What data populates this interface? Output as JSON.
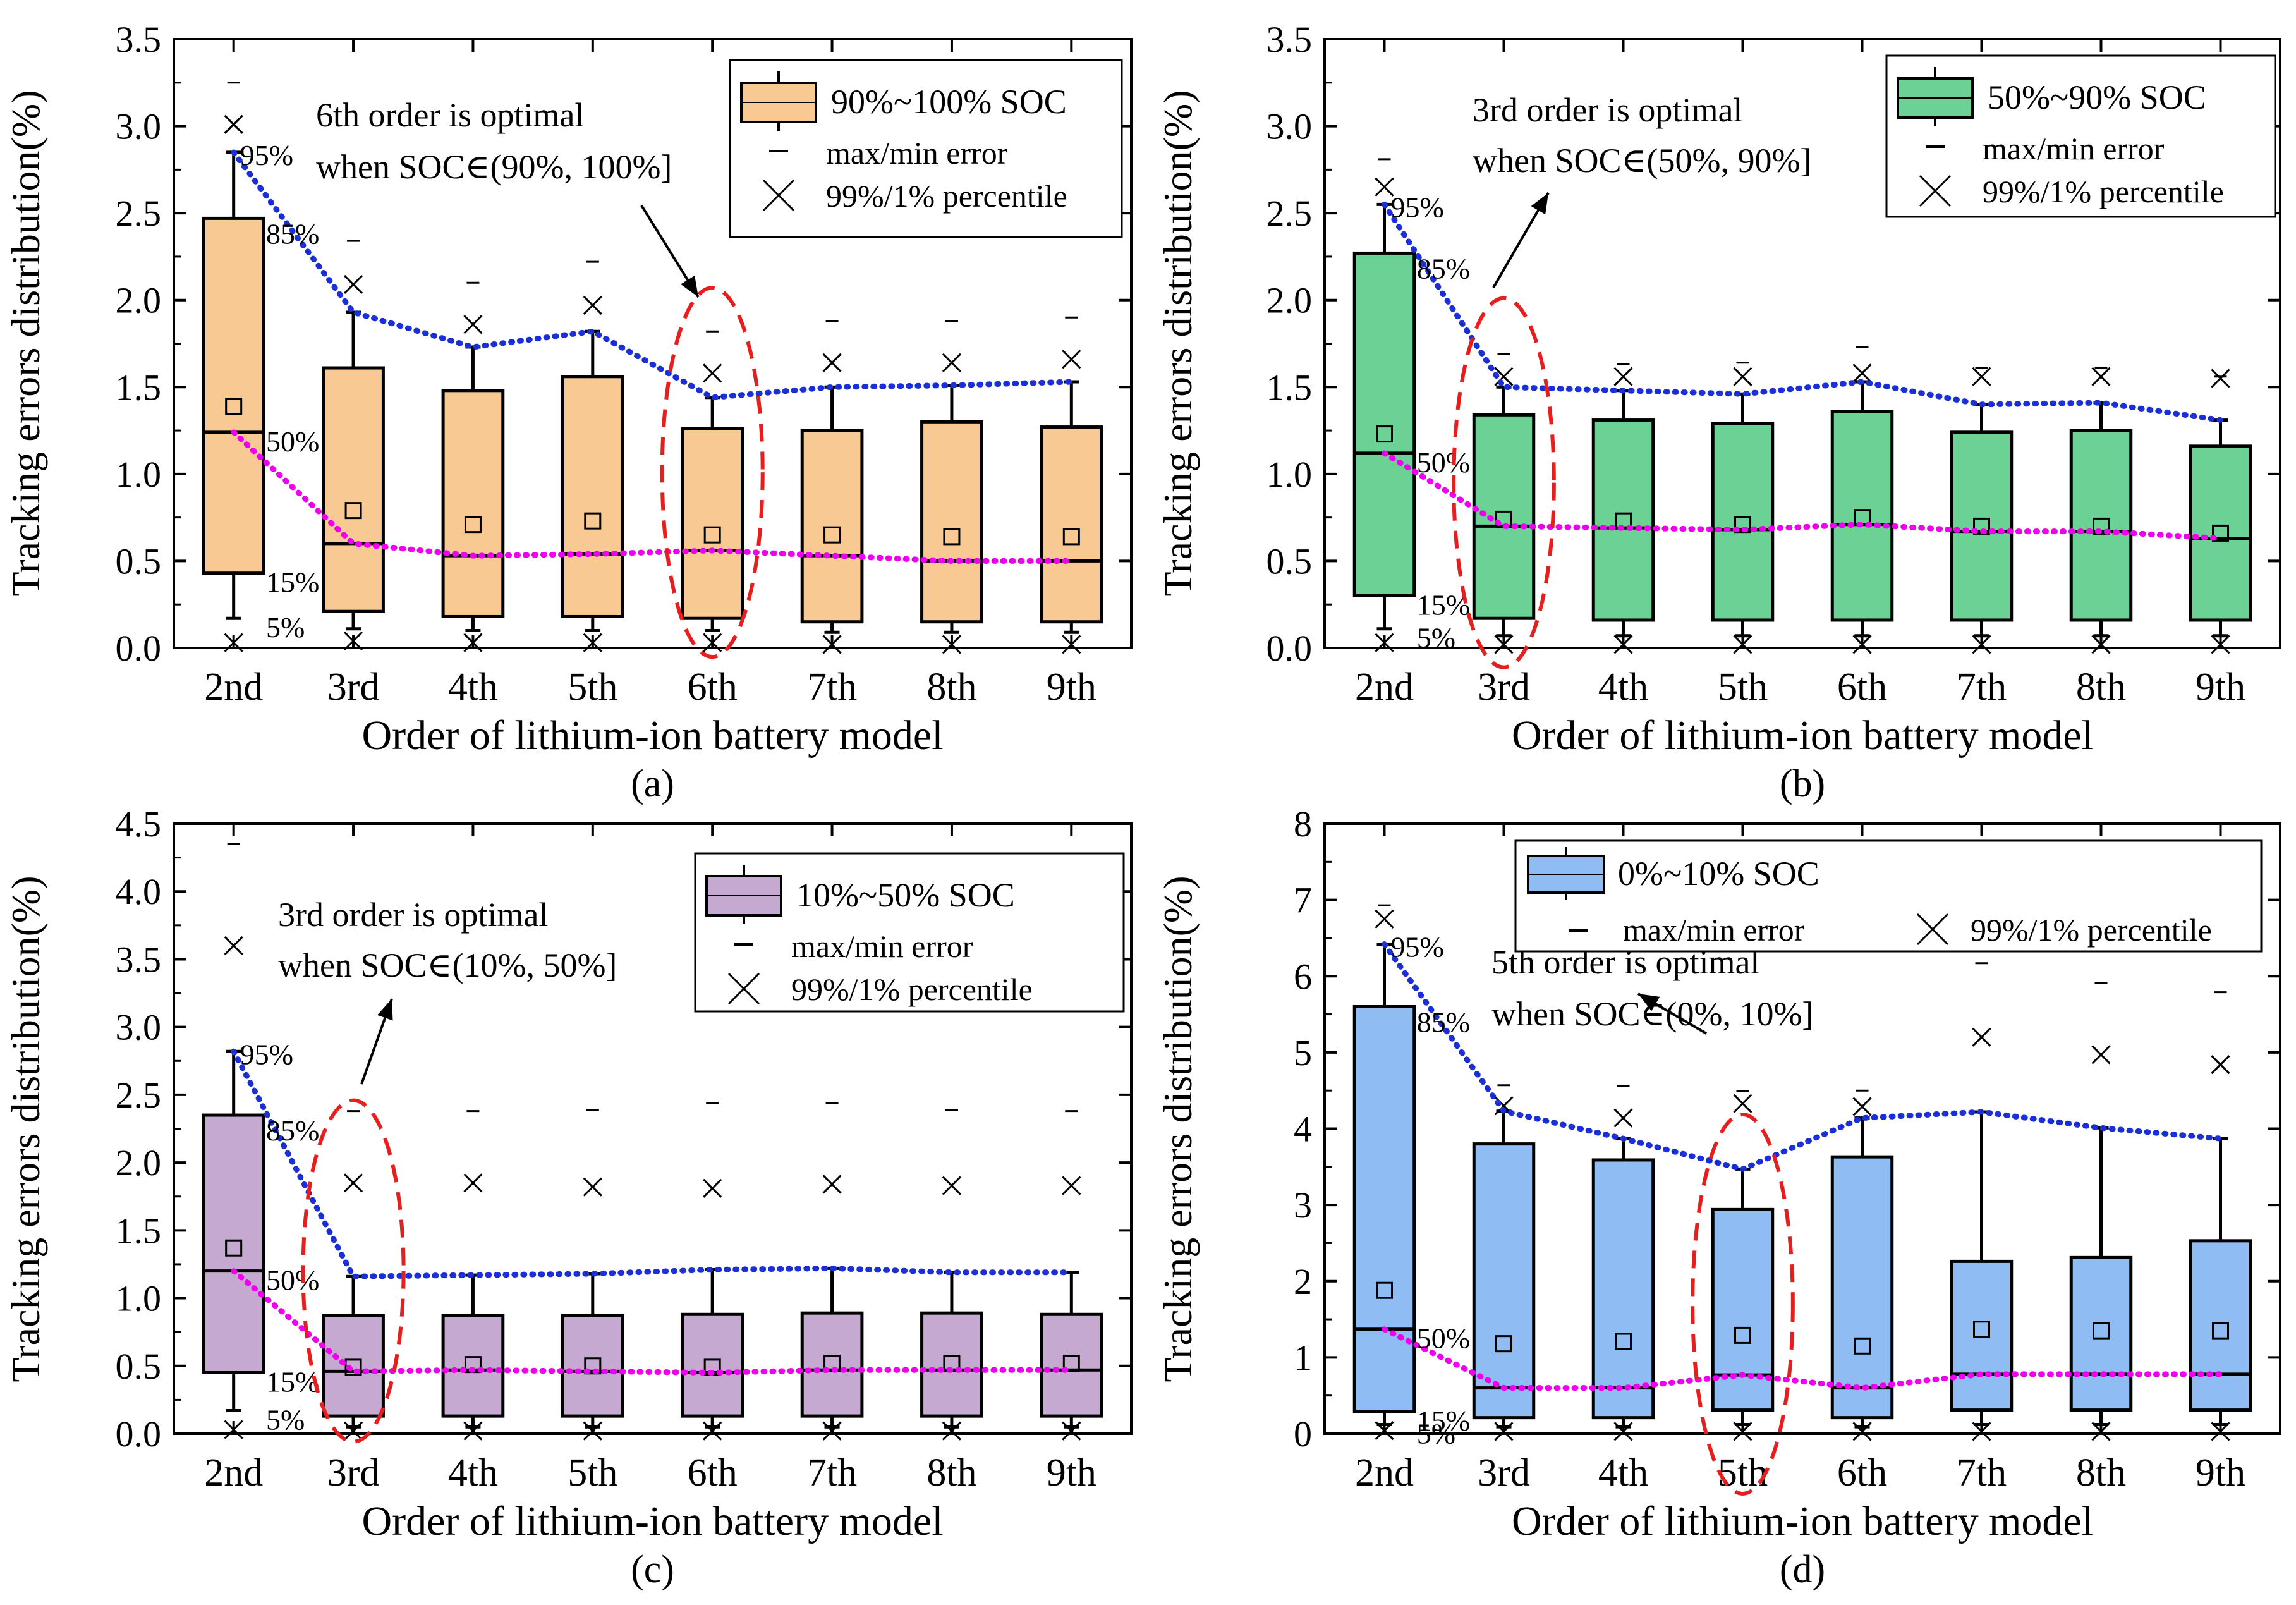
{
  "chart_data": [
    {
      "type": "box",
      "panel_label": "(a)",
      "xlabel": "Order of lithium-ion battery model",
      "ylabel": "Tracking errors distribution(%)",
      "categories": [
        "2nd",
        "3rd",
        "4th",
        "5th",
        "6th",
        "7th",
        "8th",
        "9th"
      ],
      "ylim": [
        0,
        3.5
      ],
      "yticks": [
        0.0,
        0.5,
        1.0,
        1.5,
        2.0,
        2.5,
        3.0,
        3.5
      ],
      "ytick_labels": [
        "0.0",
        "0.5",
        "1.0",
        "1.5",
        "2.0",
        "2.5",
        "3.0",
        "3.5"
      ],
      "box_color": "#f9c994",
      "highlight_index": 4,
      "legend": {
        "box": "90%~100% SOC",
        "minmax": "max/min error",
        "percentile": "99%/1% percentile"
      },
      "annotation": {
        "line1": "6th order is optimal",
        "line2": "when SOC∈(90%, 100%]"
      },
      "percent_labels": {
        "p95": "95%",
        "p85": "85%",
        "p50": "50%",
        "p15": "15%",
        "p5": "5%"
      },
      "p95": [
        2.85,
        1.93,
        1.73,
        1.82,
        1.44,
        1.5,
        1.51,
        1.53
      ],
      "p85": [
        2.47,
        1.61,
        1.48,
        1.56,
        1.26,
        1.25,
        1.3,
        1.27
      ],
      "p50": [
        1.24,
        0.6,
        0.53,
        0.54,
        0.56,
        0.53,
        0.5,
        0.5
      ],
      "p15": [
        0.43,
        0.21,
        0.18,
        0.18,
        0.17,
        0.15,
        0.15,
        0.15
      ],
      "p5": [
        0.17,
        0.11,
        0.1,
        0.1,
        0.1,
        0.09,
        0.09,
        0.09
      ],
      "mean": [
        1.39,
        0.79,
        0.71,
        0.73,
        0.65,
        0.65,
        0.64,
        0.64
      ],
      "p99": [
        3.01,
        2.09,
        1.86,
        1.97,
        1.58,
        1.64,
        1.64,
        1.66
      ],
      "p1": [
        0.03,
        0.04,
        0.03,
        0.03,
        0.03,
        0.02,
        0.02,
        0.02
      ],
      "max": [
        3.25,
        2.34,
        2.1,
        2.22,
        1.82,
        1.88,
        1.88,
        1.9
      ],
      "min": [
        0.0,
        0.0,
        0.0,
        0.0,
        0.0,
        0.0,
        0.0,
        0.0
      ]
    },
    {
      "type": "box",
      "panel_label": "(b)",
      "xlabel": "Order of lithium-ion battery model",
      "ylabel": "Tracking errors distribution(%)",
      "categories": [
        "2nd",
        "3rd",
        "4th",
        "5th",
        "6th",
        "7th",
        "8th",
        "9th"
      ],
      "ylim": [
        0,
        3.5
      ],
      "yticks": [
        0.0,
        0.5,
        1.0,
        1.5,
        2.0,
        2.5,
        3.0,
        3.5
      ],
      "ytick_labels": [
        "0.0",
        "0.5",
        "1.0",
        "1.5",
        "2.0",
        "2.5",
        "3.0",
        "3.5"
      ],
      "box_color": "#6cd195",
      "highlight_index": 1,
      "legend": {
        "box": "50%~90% SOC",
        "minmax": "max/min error",
        "percentile": "99%/1% percentile"
      },
      "annotation": {
        "line1": "3rd order is optimal",
        "line2": "when SOC∈(50%, 90%]"
      },
      "percent_labels": {
        "p95": "95%",
        "p85": "85%",
        "p50": "50%",
        "p15": "15%",
        "p5": "5%"
      },
      "p95": [
        2.55,
        1.5,
        1.48,
        1.46,
        1.53,
        1.4,
        1.41,
        1.31
      ],
      "p85": [
        2.27,
        1.34,
        1.31,
        1.29,
        1.36,
        1.24,
        1.25,
        1.16
      ],
      "p50": [
        1.12,
        0.7,
        0.69,
        0.68,
        0.71,
        0.67,
        0.67,
        0.63
      ],
      "p15": [
        0.3,
        0.17,
        0.16,
        0.16,
        0.16,
        0.16,
        0.16,
        0.16
      ],
      "p5": [
        0.11,
        0.07,
        0.07,
        0.07,
        0.07,
        0.07,
        0.07,
        0.07
      ],
      "mean": [
        1.23,
        0.74,
        0.73,
        0.71,
        0.75,
        0.7,
        0.7,
        0.66
      ],
      "p99": [
        2.65,
        1.56,
        1.56,
        1.56,
        1.58,
        1.56,
        1.56,
        1.55
      ],
      "p1": [
        0.03,
        0.02,
        0.02,
        0.02,
        0.02,
        0.02,
        0.02,
        0.02
      ],
      "max": [
        2.81,
        1.69,
        1.63,
        1.64,
        1.73,
        1.61,
        1.61,
        1.56
      ],
      "min": [
        0.0,
        0.0,
        0.0,
        0.0,
        0.0,
        0.0,
        0.0,
        0.0
      ]
    },
    {
      "type": "box",
      "panel_label": "(c)",
      "xlabel": "Order of lithium-ion battery model",
      "ylabel": "Tracking errors distribution(%)",
      "categories": [
        "2nd",
        "3rd",
        "4th",
        "5th",
        "6th",
        "7th",
        "8th",
        "9th"
      ],
      "ylim": [
        0,
        4.5
      ],
      "yticks": [
        0.0,
        0.5,
        1.0,
        1.5,
        2.0,
        2.5,
        3.0,
        3.5,
        4.0,
        4.5
      ],
      "ytick_labels": [
        "0.0",
        "0.5",
        "1.0",
        "1.5",
        "2.0",
        "2.5",
        "3.0",
        "3.5",
        "4.0",
        "4.5"
      ],
      "box_color": "#c6a9d1",
      "highlight_index": 1,
      "legend": {
        "box": "10%~50% SOC",
        "minmax": "max/min error",
        "percentile": "99%/1% percentile"
      },
      "annotation": {
        "line1": "3rd order is optimal",
        "line2": "when SOC∈(10%, 50%]"
      },
      "percent_labels": {
        "p95": "95%",
        "p85": "85%",
        "p50": "50%",
        "p15": "15%",
        "p5": "5%"
      },
      "p95": [
        2.82,
        1.16,
        1.17,
        1.18,
        1.21,
        1.22,
        1.19,
        1.19
      ],
      "p85": [
        2.35,
        0.87,
        0.87,
        0.87,
        0.88,
        0.89,
        0.89,
        0.88
      ],
      "p50": [
        1.2,
        0.46,
        0.47,
        0.46,
        0.45,
        0.47,
        0.47,
        0.47
      ],
      "p15": [
        0.45,
        0.13,
        0.13,
        0.13,
        0.13,
        0.13,
        0.13,
        0.13
      ],
      "p5": [
        0.17,
        0.05,
        0.05,
        0.05,
        0.05,
        0.05,
        0.05,
        0.05
      ],
      "mean": [
        1.37,
        0.49,
        0.51,
        0.5,
        0.49,
        0.52,
        0.52,
        0.52
      ],
      "p99": [
        3.6,
        1.85,
        1.85,
        1.82,
        1.81,
        1.84,
        1.83,
        1.83
      ],
      "p1": [
        0.03,
        0.02,
        0.02,
        0.02,
        0.02,
        0.02,
        0.02,
        0.02
      ],
      "max": [
        4.35,
        2.38,
        2.38,
        2.39,
        2.44,
        2.44,
        2.39,
        2.38
      ],
      "min": [
        0.0,
        0.0,
        0.0,
        0.0,
        0.0,
        0.0,
        0.0,
        0.0
      ]
    },
    {
      "type": "box",
      "panel_label": "(d)",
      "xlabel": "Order of lithium-ion battery model",
      "ylabel": "Tracking errors distribution(%)",
      "categories": [
        "2nd",
        "3rd",
        "4th",
        "5th",
        "6th",
        "7th",
        "8th",
        "9th"
      ],
      "ylim": [
        0,
        8
      ],
      "yticks": [
        0,
        1,
        2,
        3,
        4,
        5,
        6,
        7,
        8
      ],
      "ytick_labels": [
        "0",
        "1",
        "2",
        "3",
        "4",
        "5",
        "6",
        "7",
        "8"
      ],
      "box_color": "#8fbcf2",
      "highlight_index": 3,
      "legend": {
        "box": "0%~10% SOC",
        "minmax": "max/min error",
        "percentile": "99%/1% percentile"
      },
      "annotation": {
        "line1": "5th order is optimal",
        "line2": "when SOC∈(0%, 10%]"
      },
      "percent_labels": {
        "p95": "95%",
        "p85": "85%",
        "p50": "50%",
        "p15": "15%",
        "p5": "5%"
      },
      "p95": [
        6.42,
        4.23,
        3.87,
        3.47,
        4.14,
        4.22,
        4.01,
        3.87
      ],
      "p85": [
        5.6,
        3.8,
        3.59,
        2.94,
        3.63,
        2.26,
        2.31,
        2.53
      ],
      "p50": [
        1.37,
        0.6,
        0.6,
        0.77,
        0.6,
        0.78,
        0.78,
        0.78
      ],
      "p15": [
        0.29,
        0.21,
        0.21,
        0.31,
        0.21,
        0.31,
        0.31,
        0.31
      ],
      "p5": [
        0.12,
        0.09,
        0.09,
        0.12,
        0.09,
        0.12,
        0.12,
        0.12
      ],
      "mean": [
        1.88,
        1.18,
        1.21,
        1.29,
        1.15,
        1.37,
        1.35,
        1.35
      ],
      "p99": [
        6.75,
        4.3,
        4.14,
        4.33,
        4.29,
        5.2,
        4.97,
        4.84
      ],
      "p1": [
        0.04,
        0.03,
        0.03,
        0.03,
        0.03,
        0.03,
        0.03,
        0.03
      ],
      "max": [
        6.93,
        4.57,
        4.56,
        4.49,
        4.5,
        6.17,
        5.91,
        5.79
      ],
      "min": [
        0.0,
        0.0,
        0.0,
        0.0,
        0.0,
        0.0,
        0.0,
        0.0
      ]
    }
  ],
  "colors": {
    "p95_line": "#1a2fd8",
    "p50_line": "#ee00ee",
    "highlight": "#e61e1e"
  }
}
